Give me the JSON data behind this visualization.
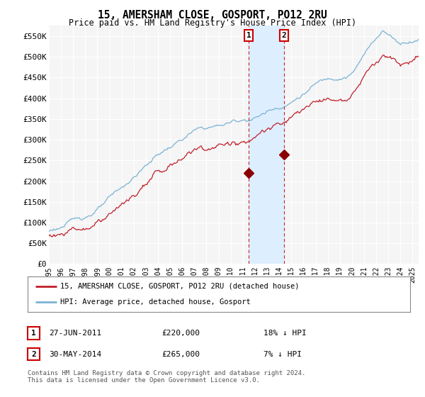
{
  "title": "15, AMERSHAM CLOSE, GOSPORT, PO12 2RU",
  "subtitle": "Price paid vs. HM Land Registry's House Price Index (HPI)",
  "ylabel_ticks": [
    "£0",
    "£50K",
    "£100K",
    "£150K",
    "£200K",
    "£250K",
    "£300K",
    "£350K",
    "£400K",
    "£450K",
    "£500K",
    "£550K"
  ],
  "ytick_values": [
    0,
    50000,
    100000,
    150000,
    200000,
    250000,
    300000,
    350000,
    400000,
    450000,
    500000,
    550000
  ],
  "ylim": [
    0,
    575000
  ],
  "xlim_start": 1995.0,
  "xlim_end": 2025.5,
  "xtick_years": [
    1995,
    1996,
    1997,
    1998,
    1999,
    2000,
    2001,
    2002,
    2003,
    2004,
    2005,
    2006,
    2007,
    2008,
    2009,
    2010,
    2011,
    2012,
    2013,
    2014,
    2015,
    2016,
    2017,
    2018,
    2019,
    2020,
    2021,
    2022,
    2023,
    2024,
    2025
  ],
  "hpi_color": "#7ab3d4",
  "price_color": "#c0202a",
  "dot_color": "#8b0000",
  "vline_color": "#cc2222",
  "marker1_year": 2011.49,
  "marker2_year": 2014.41,
  "marker1_price": 220000,
  "marker2_price": 265000,
  "legend_label1": "15, AMERSHAM CLOSE, GOSPORT, PO12 2RU (detached house)",
  "legend_label2": "HPI: Average price, detached house, Gosport",
  "table_row1": [
    "1",
    "27-JUN-2011",
    "£220,000",
    "18% ↓ HPI"
  ],
  "table_row2": [
    "2",
    "30-MAY-2014",
    "£265,000",
    "7% ↓ HPI"
  ],
  "footer": "Contains HM Land Registry data © Crown copyright and database right 2024.\nThis data is licensed under the Open Government Licence v3.0.",
  "bg_color": "#ffffff",
  "plot_bg_color": "#f5f5f5",
  "grid_color": "#ffffff",
  "span_color": "#ddeeff"
}
